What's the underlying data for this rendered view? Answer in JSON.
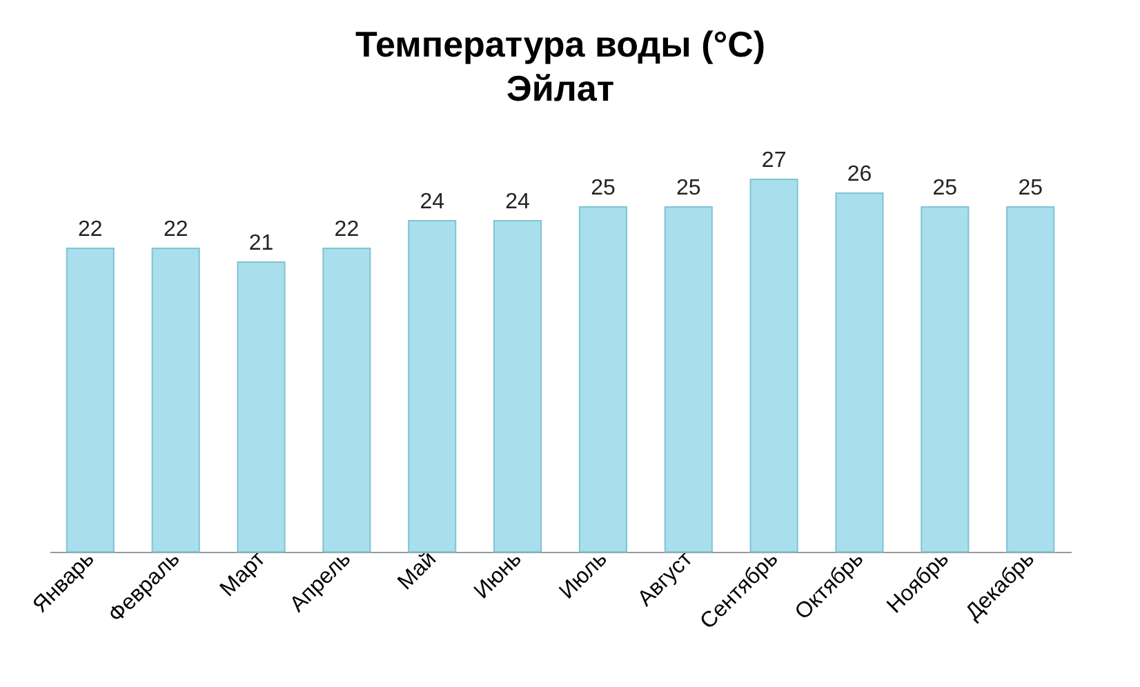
{
  "chart_data": {
    "type": "bar",
    "title": "Температура воды (°C)",
    "subtitle": "Эйлат",
    "categories": [
      "Январь",
      "Февраль",
      "Март",
      "Апрель",
      "Май",
      "Июнь",
      "Июль",
      "Август",
      "Сентябрь",
      "Октябрь",
      "Ноябрь",
      "Декабрь"
    ],
    "values": [
      22,
      22,
      21,
      22,
      24,
      24,
      25,
      25,
      27,
      26,
      25,
      25
    ],
    "color": "#a9dfec",
    "data_labels": true
  }
}
